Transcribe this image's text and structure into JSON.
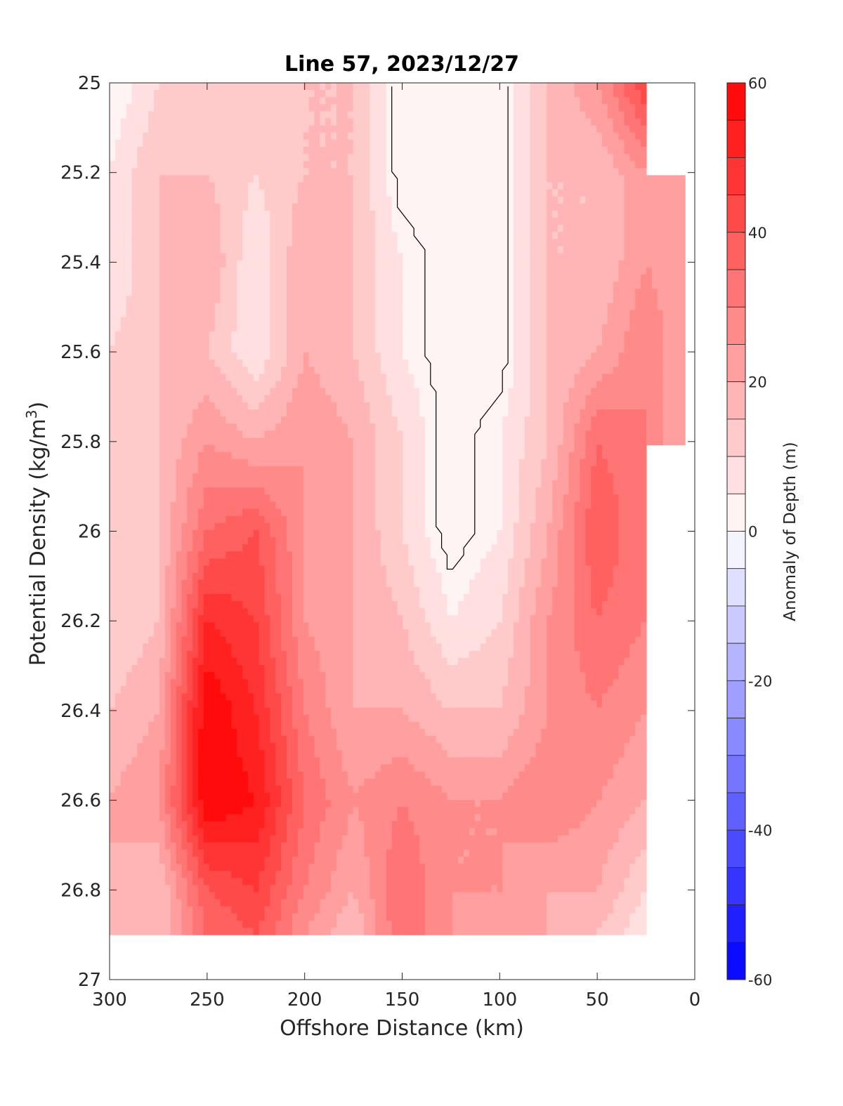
{
  "chart_data": {
    "type": "heatmap",
    "title": "Line 57, 2023/12/27",
    "xlabel": "Offshore Distance (km)",
    "ylabel_main": "Potential Density (kg/m",
    "ylabel_sup": "3",
    "ylabel_close": ")",
    "xlim": [
      300,
      0
    ],
    "ylim": [
      25,
      27
    ],
    "x_reversed": true,
    "y_reversed": true,
    "xticks": [
      "300",
      "250",
      "200",
      "150",
      "100",
      "50",
      "0"
    ],
    "yticks": [
      "25",
      "25.2",
      "25.4",
      "25.6",
      "25.8",
      "26",
      "26.2",
      "26.4",
      "26.6",
      "26.8",
      "27"
    ],
    "colorbar": {
      "label": "Anomaly of Depth (m)",
      "range": [
        -60,
        60
      ],
      "step": 5,
      "ticks": [
        "60",
        "40",
        "20",
        "0",
        "-20",
        "-40",
        "-60"
      ]
    },
    "x": [
      300,
      275,
      250,
      225,
      200,
      175,
      150,
      125,
      100,
      75,
      50,
      25,
      5
    ],
    "y": [
      25.0,
      25.2,
      25.4,
      25.6,
      25.8,
      26.0,
      26.2,
      26.4,
      26.6,
      26.8,
      26.9
    ],
    "z": [
      [
        0,
        10,
        15,
        15,
        15,
        15,
        0,
        0,
        0,
        15,
        25,
        45,
        null
      ],
      [
        5,
        15,
        15,
        10,
        15,
        15,
        0,
        0,
        0,
        15,
        15,
        25,
        20
      ],
      [
        5,
        15,
        20,
        5,
        20,
        15,
        5,
        0,
        0,
        15,
        15,
        25,
        20
      ],
      [
        10,
        15,
        15,
        5,
        20,
        15,
        5,
        0,
        0,
        15,
        20,
        30,
        20
      ],
      [
        10,
        15,
        25,
        20,
        25,
        20,
        10,
        0,
        5,
        15,
        35,
        30,
        20
      ],
      [
        10,
        15,
        35,
        40,
        25,
        20,
        10,
        0,
        5,
        20,
        40,
        30,
        null
      ],
      [
        10,
        15,
        50,
        45,
        25,
        20,
        15,
        5,
        10,
        25,
        35,
        30,
        null
      ],
      [
        15,
        20,
        60,
        50,
        30,
        20,
        20,
        15,
        15,
        25,
        30,
        25,
        null
      ],
      [
        20,
        25,
        60,
        55,
        35,
        25,
        30,
        25,
        25,
        30,
        25,
        20,
        null
      ],
      [
        20,
        15,
        40,
        45,
        30,
        20,
        35,
        25,
        25,
        20,
        20,
        10,
        null
      ],
      [
        15,
        15,
        35,
        40,
        25,
        15,
        35,
        25,
        20,
        20,
        15,
        5,
        null
      ]
    ],
    "zero_contour_label": "0"
  }
}
